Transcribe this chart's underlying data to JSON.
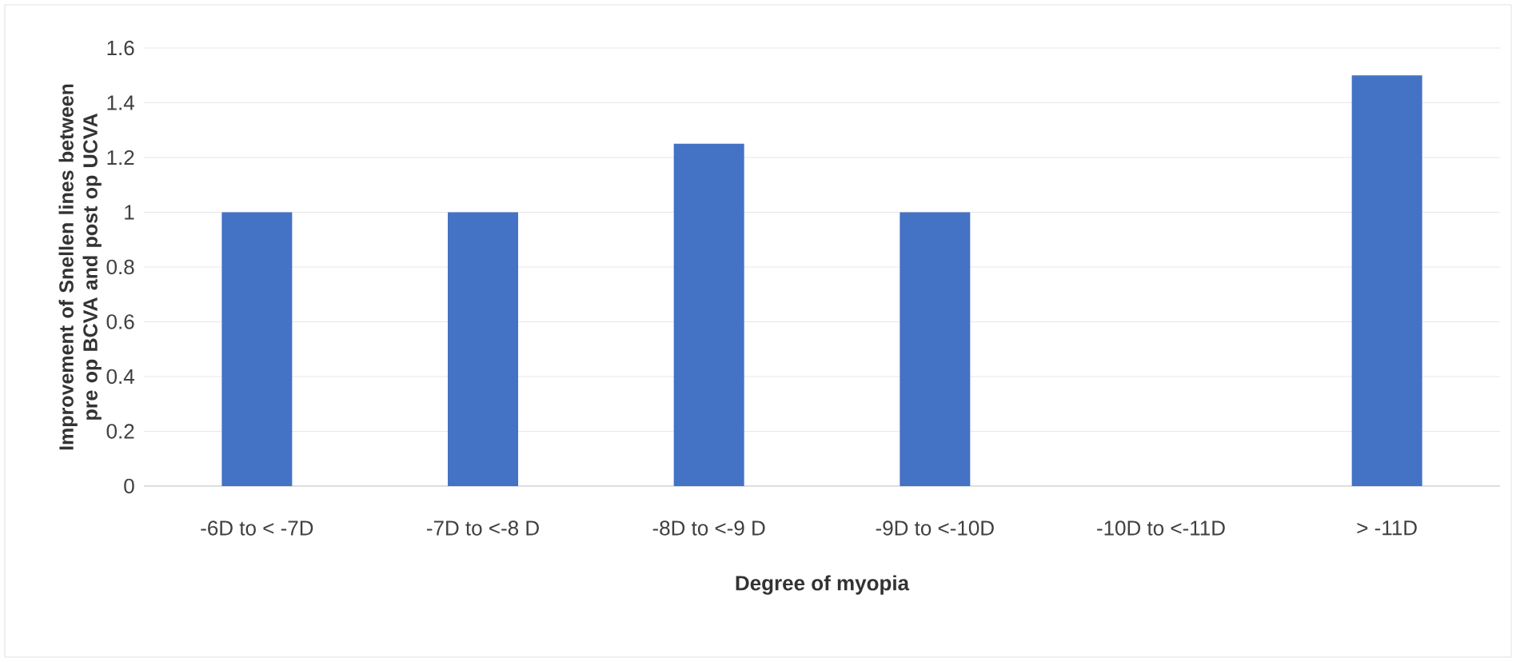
{
  "chart_data": {
    "type": "bar",
    "xlabel": "Degree of myopia",
    "ylabel": "Improvement of Snellen lines between pre op BCVA and post op UCVA",
    "categories": [
      "-6D to < -7D",
      "-7D to <-8 D",
      "-8D to <-9 D",
      "-9D to <-10D",
      "-10D to <-11D",
      "> -11D"
    ],
    "values": [
      1,
      1,
      1.25,
      1,
      null,
      1.5
    ],
    "color": "#4472c4",
    "ylim": [
      0,
      1.6
    ],
    "yticks": [
      0,
      0.2,
      0.4,
      0.6,
      0.8,
      1,
      1.2,
      1.4,
      1.6
    ],
    "grid": "y"
  }
}
